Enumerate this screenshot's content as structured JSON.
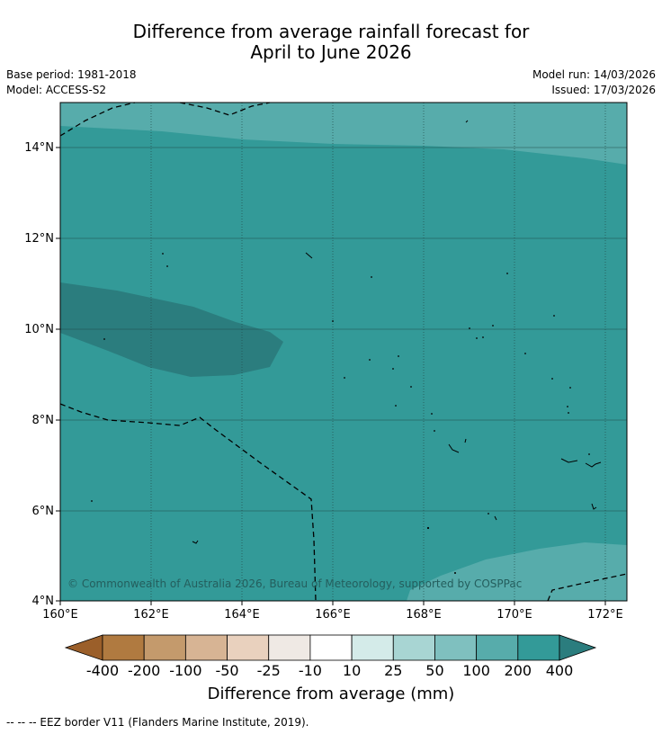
{
  "title": {
    "line1": "Difference from average rainfall forecast for",
    "line2": "April to June 2026"
  },
  "meta": {
    "base_period": "Base period: 1981-2018",
    "model": "Model: ACCESS-S2",
    "model_run": "Model run: 14/03/2026",
    "issued": "Issued: 17/03/2026"
  },
  "map": {
    "lat_labels": [
      "14°N",
      "12°N",
      "10°N",
      "8°N",
      "6°N",
      "4°N"
    ],
    "lon_labels": [
      "160°E",
      "162°E",
      "164°E",
      "166°E",
      "168°E",
      "170°E",
      "172°E"
    ],
    "attribution": "© Commonwealth of Australia 2026, Bureau of Meteorology, supported by COSPPac",
    "lon_range": [
      160,
      172.5
    ],
    "lat_range": [
      4,
      15
    ]
  },
  "colorbar": {
    "labels": [
      "-400",
      "-200",
      "-100",
      "-50",
      "-25",
      "-10",
      "10",
      "25",
      "50",
      "100",
      "200",
      "400"
    ],
    "colors": [
      "#9b5f2a",
      "#b07a40",
      "#c49a6c",
      "#d7b494",
      "#e9d1be",
      "#efe9e4",
      "#ffffff",
      "#d4ebe9",
      "#a8d5d3",
      "#7fc0bf",
      "#57acab",
      "#339a98",
      "#2b7d7e"
    ],
    "title": "Difference from average (mm)"
  },
  "footnote": "--  --  -- EEZ border V11 (Flanders Marine Institute, 2019)."
}
